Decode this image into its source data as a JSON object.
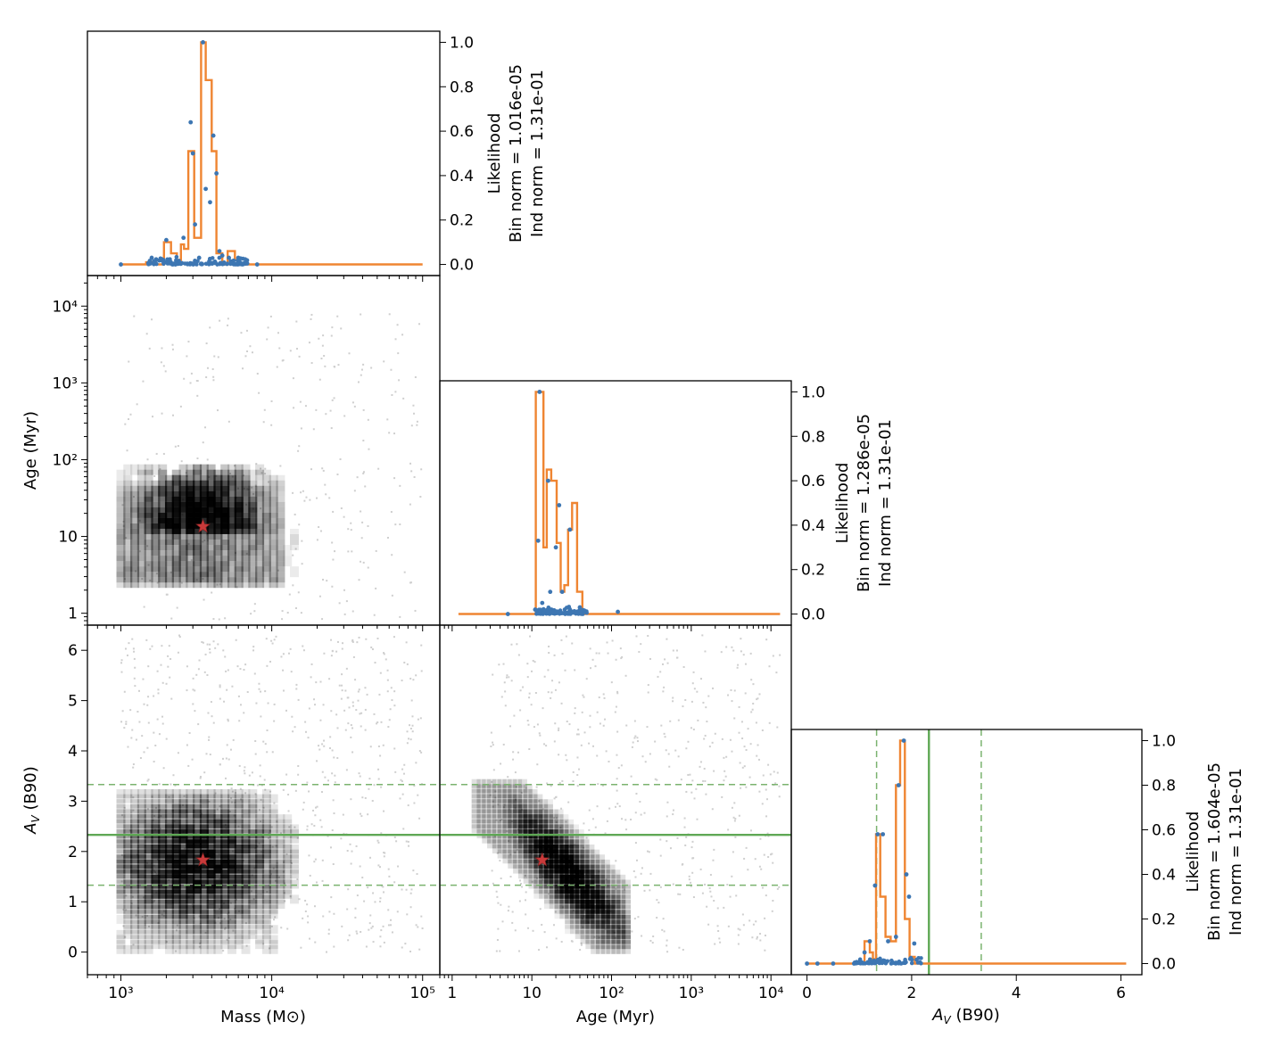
{
  "chart_data": [
    {
      "id": "mass_hist",
      "type": "step",
      "panel": "top-left",
      "x_scale": "log",
      "xlim": [
        600,
        130000
      ],
      "ylim": [
        -0.05,
        1.05
      ],
      "y_ticks": [
        "0.0",
        "0.2",
        "0.4",
        "0.6",
        "0.8",
        "1.0"
      ],
      "ylabel_lines": [
        "Likelihood",
        "Bin norm = 1.016e-05",
        "Ind norm = 1.31e-01"
      ],
      "step_edges": [
        1000,
        1470,
        1700,
        1930,
        2150,
        2350,
        2500,
        2620,
        2800,
        3060,
        3400,
        3650,
        4000,
        4300,
        4700,
        5100,
        5700,
        6100,
        100000
      ],
      "step_values": [
        0.0,
        0.01,
        0.0,
        0.1,
        0.05,
        0.02,
        0.09,
        0.07,
        0.51,
        0.12,
        1.0,
        0.83,
        0.51,
        0.05,
        0.0,
        0.06,
        0.02,
        0.0
      ],
      "points": [
        [
          1000,
          0
        ],
        [
          1600,
          0.03
        ],
        [
          2000,
          0.11
        ],
        [
          2100,
          0.02
        ],
        [
          2300,
          0.0
        ],
        [
          2600,
          0.12
        ],
        [
          2900,
          0.64
        ],
        [
          3000,
          0.5
        ],
        [
          3100,
          0.18
        ],
        [
          3300,
          0.03
        ],
        [
          3500,
          1.0
        ],
        [
          3650,
          0.34
        ],
        [
          3900,
          0.28
        ],
        [
          4100,
          0.58
        ],
        [
          4300,
          0.41
        ],
        [
          4500,
          0.06
        ],
        [
          4700,
          0.04
        ],
        [
          5200,
          0.03
        ],
        [
          6000,
          0.03
        ],
        [
          6800,
          0.01
        ],
        [
          8000,
          0.0
        ]
      ]
    },
    {
      "id": "age_hist",
      "type": "step",
      "panel": "middle",
      "x_scale": "log",
      "xlim": [
        0.7,
        18000
      ],
      "ylim": [
        -0.05,
        1.05
      ],
      "y_ticks": [
        "0.0",
        "0.2",
        "0.4",
        "0.6",
        "0.8",
        "1.0"
      ],
      "ylabel_lines": [
        "Likelihood",
        "Bin norm = 1.286e-05",
        "Ind norm = 1.31e-01"
      ],
      "step_edges": [
        1.2,
        11.2,
        14.0,
        15.4,
        17.5,
        20.5,
        23.0,
        25.6,
        28.5,
        32.0,
        37.0,
        43.0,
        13000
      ],
      "step_values": [
        0.0,
        1.0,
        0.3,
        0.65,
        0.6,
        0.32,
        0.1,
        0.13,
        0.38,
        0.5,
        0.1,
        0.0
      ],
      "points": [
        [
          5,
          0
        ],
        [
          11,
          0.02
        ],
        [
          12,
          0.33
        ],
        [
          12.5,
          1.0
        ],
        [
          13.5,
          0.05
        ],
        [
          16,
          0.6
        ],
        [
          17,
          0.1
        ],
        [
          20,
          0.3
        ],
        [
          22,
          0.49
        ],
        [
          24,
          0.1
        ],
        [
          30,
          0.38
        ],
        [
          40,
          0.03
        ],
        [
          120,
          0.01
        ]
      ]
    },
    {
      "id": "av_hist",
      "type": "step",
      "panel": "bottom-right",
      "x_scale": "linear",
      "xlim": [
        -0.3,
        6.4
      ],
      "ylim": [
        -0.05,
        1.05
      ],
      "xlabel": "A_V (B90)",
      "x_ticks": [
        "0",
        "2",
        "4",
        "6"
      ],
      "y_ticks": [
        "0.0",
        "0.2",
        "0.4",
        "0.6",
        "0.8",
        "1.0"
      ],
      "ylabel_lines": [
        "Likelihood",
        "Bin norm = 1.604e-05",
        "Ind norm = 1.31e-01"
      ],
      "step_edges": [
        0.0,
        1.1,
        1.2,
        1.26,
        1.32,
        1.4,
        1.5,
        1.6,
        1.7,
        1.78,
        1.87,
        1.96,
        2.06,
        2.33,
        6.1
      ],
      "step_values": [
        0.0,
        0.1,
        0.05,
        0.02,
        0.58,
        0.3,
        0.12,
        0.1,
        0.8,
        1.0,
        0.2,
        0.03,
        0.0,
        0.0
      ],
      "points": [
        [
          0.0,
          0
        ],
        [
          0.2,
          0.0
        ],
        [
          0.5,
          0.0
        ],
        [
          0.9,
          0.0
        ],
        [
          1.1,
          0.05
        ],
        [
          1.2,
          0.1
        ],
        [
          1.3,
          0.35
        ],
        [
          1.35,
          0.58
        ],
        [
          1.45,
          0.58
        ],
        [
          1.55,
          0.1
        ],
        [
          1.7,
          0.12
        ],
        [
          1.75,
          0.8
        ],
        [
          1.85,
          1.0
        ],
        [
          1.9,
          0.4
        ],
        [
          1.95,
          0.3
        ],
        [
          2.05,
          0.09
        ]
      ],
      "reference_solid": 2.33,
      "reference_dashed": [
        1.33,
        3.33
      ]
    },
    {
      "id": "mass_age_2d",
      "type": "heatmap",
      "panel": "middle-left",
      "xlabel": "",
      "ylabel": "Age (Myr)",
      "x_scale": "log",
      "y_scale": "log",
      "xlim": [
        600,
        130000
      ],
      "ylim": [
        0.7,
        25000
      ],
      "y_ticks": [
        "1",
        "10",
        "10²",
        "10³",
        "10⁴"
      ],
      "best_fit": {
        "mass": 3500,
        "age": 13.5
      }
    },
    {
      "id": "mass_av_2d",
      "type": "heatmap",
      "panel": "bottom-left",
      "xlabel": "Mass (M⊙)",
      "ylabel": "A_V (B90)",
      "x_scale": "log",
      "xlim": [
        600,
        130000
      ],
      "ylim": [
        -0.45,
        6.5
      ],
      "x_ticks": [
        "10³",
        "10⁴",
        "10⁵"
      ],
      "y_ticks": [
        "0",
        "1",
        "2",
        "3",
        "4",
        "5",
        "6"
      ],
      "best_fit": {
        "mass": 3500,
        "av": 1.83
      },
      "reference_solid": 2.33,
      "reference_dashed": [
        1.33,
        3.33
      ]
    },
    {
      "id": "age_av_2d",
      "type": "heatmap",
      "panel": "bottom-middle",
      "xlabel": "Age (Myr)",
      "x_scale": "log",
      "xlim": [
        0.7,
        18000
      ],
      "ylim": [
        -0.45,
        6.5
      ],
      "x_ticks": [
        "1",
        "10",
        "10²",
        "10³",
        "10⁴"
      ],
      "best_fit": {
        "age": 13.5,
        "av": 1.83
      },
      "reference_solid": 2.33,
      "reference_dashed": [
        1.33,
        3.33
      ]
    }
  ]
}
